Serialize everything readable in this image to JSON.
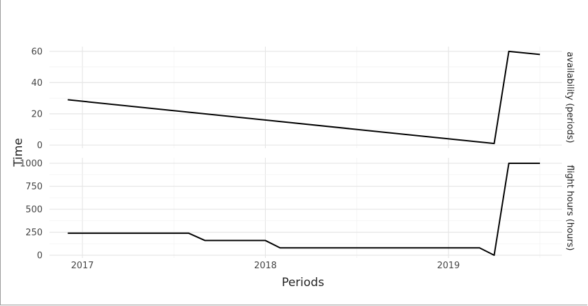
{
  "chart_data": {
    "type": "line",
    "xlabel": "Periods",
    "ylabel": "Time",
    "x_ticks": [
      {
        "value": 2017,
        "label": "2017"
      },
      {
        "value": 2018,
        "label": "2018"
      },
      {
        "value": 2019,
        "label": "2019"
      }
    ],
    "xlim": [
      2016.82,
      2019.62
    ],
    "grid": true,
    "line_color": "#000000",
    "panels": [
      {
        "strip_label": "availability (periods)",
        "ylim": [
          -2,
          63
        ],
        "y_ticks": [
          {
            "value": 0,
            "label": "0"
          },
          {
            "value": 20,
            "label": "20"
          },
          {
            "value": 40,
            "label": "40"
          },
          {
            "value": 60,
            "label": "60"
          }
        ],
        "x": [
          2016.92,
          2019.25,
          2019.33,
          2019.5
        ],
        "y": [
          29,
          1,
          60,
          58
        ]
      },
      {
        "strip_label": "flight hours (hours)",
        "ylim": [
          -30,
          1060
        ],
        "y_ticks": [
          {
            "value": 0,
            "label": "0"
          },
          {
            "value": 250,
            "label": "250"
          },
          {
            "value": 500,
            "label": "500"
          },
          {
            "value": 750,
            "label": "750"
          },
          {
            "value": 1000,
            "label": "1000"
          }
        ],
        "x": [
          2016.92,
          2017.58,
          2017.67,
          2018.0,
          2018.08,
          2019.17,
          2019.25,
          2019.33,
          2019.5
        ],
        "y": [
          240,
          240,
          160,
          160,
          80,
          80,
          0,
          1000,
          1000
        ]
      }
    ]
  }
}
